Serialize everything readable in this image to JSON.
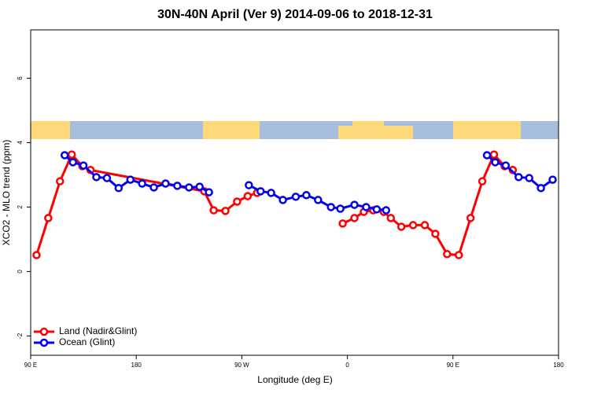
{
  "chart_data": {
    "type": "line",
    "title": "30N-40N April (Ver 9)   2014-09-06 to 2018-12-31",
    "x_label": "Longitude (deg E)",
    "y_label": "XCO2 - MLO trend (ppm)",
    "xlim": [
      90,
      540
    ],
    "xticks": [
      {
        "value": 90,
        "label": "90 E"
      },
      180,
      {
        "value": 270,
        "label": "90 W"
      },
      {
        "value": 360,
        "label": "0"
      },
      {
        "value": 450,
        "label": "90 E"
      },
      {
        "value": 540,
        "label": "180"
      }
    ],
    "ylim": [
      -2.6,
      7.5
    ],
    "yticks": [
      -2,
      0,
      2,
      4,
      6
    ],
    "legend": "bottomleft",
    "series": [
      {
        "name": "Land (Nadir&Glint)",
        "color": "#ff0000",
        "x": [
          95,
          105,
          115,
          125,
          134,
          141,
          238,
          246,
          256,
          266,
          275,
          283,
          320,
          356,
          366,
          374,
          382,
          391,
          397,
          406,
          416,
          426,
          435,
          445,
          455,
          465,
          475,
          485,
          494,
          501
        ],
        "values": [
          0.51,
          1.66,
          2.8,
          3.63,
          3.27,
          3.15,
          2.49,
          1.9,
          1.88,
          2.17,
          2.34,
          2.44,
          null,
          1.49,
          1.66,
          1.85,
          1.9,
          1.85,
          1.66,
          1.39,
          1.44,
          1.44,
          1.17,
          0.54,
          0.51,
          1.66,
          2.8,
          3.63,
          3.27,
          3.15
        ]
      },
      {
        "name": "Ocean (Glint)",
        "color": "#0000ee",
        "x": [
          119,
          126,
          135,
          146,
          155,
          165,
          175,
          185,
          195,
          205,
          215,
          225,
          234,
          242,
          259,
          276,
          286,
          295,
          305,
          316,
          325,
          335,
          346,
          354,
          366,
          376,
          385,
          393,
          436,
          479,
          486,
          495,
          506,
          515,
          525,
          535
        ],
        "values": [
          3.61,
          3.39,
          3.29,
          2.93,
          2.9,
          2.59,
          2.85,
          2.73,
          2.61,
          2.73,
          2.66,
          2.61,
          2.63,
          2.46,
          null,
          2.68,
          2.49,
          2.44,
          2.22,
          2.32,
          2.37,
          2.22,
          2.0,
          1.95,
          2.07,
          2.0,
          1.93,
          1.9,
          null,
          3.61,
          3.39,
          3.29,
          2.93,
          2.9,
          2.59,
          2.85
        ]
      }
    ]
  }
}
